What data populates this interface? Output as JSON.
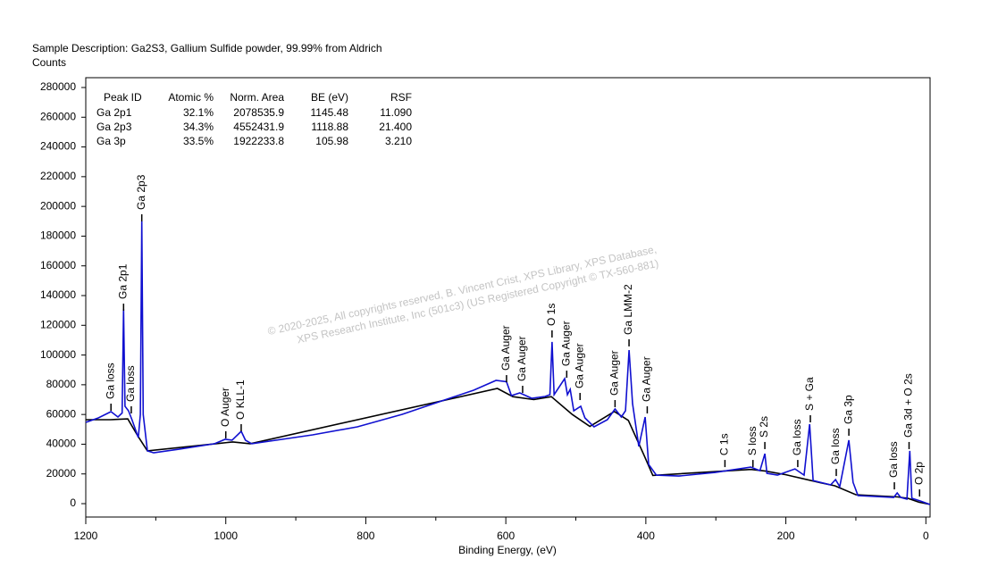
{
  "chart_data": {
    "type": "line",
    "title": "Sample Description:  Ga2S3, Gallium Sulfide powder, 99.99% from Aldrich",
    "ylabel": "Counts",
    "xlabel": "Binding Energy, (eV)",
    "xlim": [
      1200,
      -6
    ],
    "ylim": [
      -9000,
      286600
    ],
    "xticks": [
      1200,
      1000,
      800,
      600,
      400,
      200,
      0
    ],
    "xminorticks": [
      1100,
      900,
      700,
      500,
      300,
      100
    ],
    "yticks": [
      0,
      20000,
      40000,
      60000,
      80000,
      100000,
      120000,
      140000,
      160000,
      180000,
      200000,
      220000,
      240000,
      260000,
      280000
    ],
    "series": [
      {
        "name": "Background",
        "color": "#000000",
        "x": [
          1200,
          1165,
          1140,
          1125,
          1112,
          1010,
          990,
          965,
          612,
          590,
          560,
          535,
          505,
          480,
          445,
          425,
          402,
          390,
          250,
          230,
          200,
          150,
          130,
          100,
          40,
          25,
          10,
          -6
        ],
        "values": [
          56500,
          56500,
          57000,
          45000,
          35500,
          40500,
          41500,
          40300,
          77500,
          72000,
          70000,
          72000,
          60000,
          52000,
          62000,
          56000,
          32000,
          19000,
          23000,
          22000,
          19500,
          14000,
          12000,
          6000,
          4500,
          3500,
          1000,
          -500
        ]
      },
      {
        "name": "Spectrum",
        "color": "#1010d0",
        "x": [
          1200,
          1182,
          1164,
          1154,
          1148,
          1146,
          1144,
          1139,
          1134,
          1125,
          1122,
          1120,
          1118,
          1112,
          1103,
          1067,
          1016,
          1001,
          991,
          978,
          972,
          963,
          876,
          812,
          748,
          684,
          646,
          614,
          599,
          592,
          580,
          563,
          544,
          537,
          534,
          531,
          516,
          512,
          508,
          503,
          493,
          487,
          474,
          455,
          444,
          435,
          429,
          424,
          419,
          410,
          401,
          396,
          385,
          353,
          301,
          250,
          237,
          230,
          227,
          212,
          187,
          174,
          166,
          161,
          136,
          129,
          123,
          110,
          104,
          97,
          46,
          41,
          36,
          27,
          23,
          20,
          8,
          -6
        ],
        "values": [
          54700,
          57700,
          61900,
          58300,
          61000,
          131000,
          65500,
          62500,
          56500,
          44500,
          60000,
          190000,
          60000,
          35500,
          34200,
          36600,
          40300,
          43300,
          42700,
          48700,
          42700,
          40300,
          46300,
          51700,
          60100,
          70300,
          76300,
          82900,
          82000,
          72700,
          74500,
          70900,
          72100,
          73300,
          108800,
          73300,
          84100,
          73300,
          76900,
          62500,
          65500,
          57700,
          51700,
          56500,
          63700,
          58300,
          62500,
          103300,
          67300,
          38500,
          58300,
          26400,
          19200,
          18600,
          21000,
          24600,
          22200,
          33600,
          20400,
          19200,
          23400,
          19200,
          53500,
          15600,
          12600,
          16200,
          11400,
          42700,
          14400,
          5400,
          4200,
          7200,
          4200,
          3000,
          35500,
          3600,
          1800,
          -600
        ]
      }
    ],
    "annotations": [
      {
        "text": "Ga loss",
        "x": 1164,
        "y": 67300
      },
      {
        "text": "Ga 2p1",
        "x": 1146,
        "y": 134600
      },
      {
        "text": "Ga loss",
        "x": 1135,
        "y": 65500
      },
      {
        "text": "Ga 2p3",
        "x": 1120,
        "y": 194700
      },
      {
        "text": "O Auger",
        "x": 1000,
        "y": 48700
      },
      {
        "text": "O KLL-1",
        "x": 978,
        "y": 53500
      },
      {
        "text": "Ga Auger",
        "x": 599,
        "y": 86500
      },
      {
        "text": "Ga Auger",
        "x": 576,
        "y": 79300
      },
      {
        "text": "O 1s",
        "x": 534,
        "y": 116600
      },
      {
        "text": "Ga Auger",
        "x": 513,
        "y": 89500
      },
      {
        "text": "Ga Auger",
        "x": 494,
        "y": 74500
      },
      {
        "text": "Ga Auger",
        "x": 444,
        "y": 69700
      },
      {
        "text": "Ga LMM-2",
        "x": 424,
        "y": 110600
      },
      {
        "text": "Ga Auger",
        "x": 398,
        "y": 65500
      },
      {
        "text": "C 1s",
        "x": 287,
        "y": 29400
      },
      {
        "text": "S loss",
        "x": 247,
        "y": 29400
      },
      {
        "text": "S 2s",
        "x": 230,
        "y": 41500
      },
      {
        "text": "Ga loss",
        "x": 183,
        "y": 29400
      },
      {
        "text": "S + Ga",
        "x": 165,
        "y": 59500
      },
      {
        "text": "Ga loss",
        "x": 128,
        "y": 23400
      },
      {
        "text": "Ga 3p",
        "x": 110,
        "y": 50500
      },
      {
        "text": "Ga loss",
        "x": 45,
        "y": 14400
      },
      {
        "text": "Ga 3d + O 2s",
        "x": 24,
        "y": 41500
      },
      {
        "text": "O 2p",
        "x": 9,
        "y": 9600
      }
    ],
    "table": {
      "columns": [
        "Peak ID",
        "Atomic %",
        "Norm. Area",
        "BE (eV)",
        "RSF"
      ],
      "rows": [
        [
          "Ga 2p1",
          "32.1%",
          "2078535.9",
          "1145.48",
          "11.090"
        ],
        [
          "Ga 2p3",
          "34.3%",
          "4552431.9",
          "1118.88",
          "21.400"
        ],
        [
          "Ga 3p",
          "33.5%",
          "1922233.8",
          "105.98",
          "3.210"
        ]
      ]
    },
    "watermark": [
      "©  2020-2025,  All copyrights reserved,    B. Vincent Crist,  XPS Library, XPS Database,",
      "XPS Research Institute, Inc (501c3)   (US Registered Copyright © TX-560-881)"
    ]
  }
}
